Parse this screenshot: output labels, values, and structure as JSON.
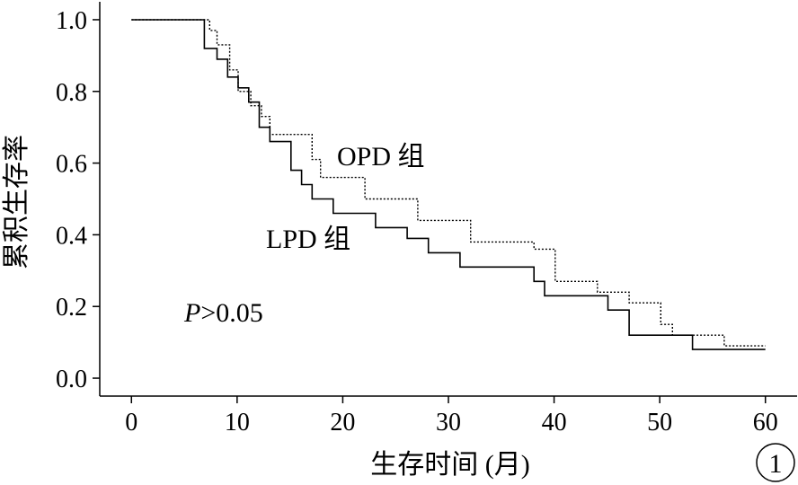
{
  "chart_data": {
    "type": "line",
    "step": true,
    "xlabel": "生存时间 (月)",
    "ylabel": "累积生存率",
    "xlim": [
      -3,
      63
    ],
    "ylim": [
      -0.05,
      1.05
    ],
    "xticks": [
      0,
      10,
      20,
      30,
      40,
      50,
      60
    ],
    "yticks": [
      0.0,
      0.2,
      0.4,
      0.6,
      0.8,
      1.0
    ],
    "xtick_labels": [
      "0",
      "10",
      "20",
      "30",
      "40",
      "50",
      "60"
    ],
    "ytick_labels": [
      "0.0",
      "0.2",
      "0.4",
      "0.6",
      "0.8",
      "1.0"
    ],
    "grid": false,
    "legend": "none",
    "annotations": {
      "p_symbol": "P",
      "p_value": ">0.05",
      "panel_number": "1"
    },
    "series": [
      {
        "name": "OPD 组",
        "line_style": "dotted",
        "color": "#000000",
        "points": [
          [
            0,
            1.0
          ],
          [
            7.4,
            1.0
          ],
          [
            7.4,
            0.97
          ],
          [
            8.1,
            0.97
          ],
          [
            8.1,
            0.93
          ],
          [
            9.3,
            0.93
          ],
          [
            9.3,
            0.86
          ],
          [
            10.1,
            0.86
          ],
          [
            10.1,
            0.8
          ],
          [
            11.3,
            0.8
          ],
          [
            11.3,
            0.76
          ],
          [
            12.3,
            0.76
          ],
          [
            12.3,
            0.73
          ],
          [
            13.1,
            0.73
          ],
          [
            13.1,
            0.68
          ],
          [
            17.1,
            0.68
          ],
          [
            17.1,
            0.61
          ],
          [
            17.9,
            0.61
          ],
          [
            17.9,
            0.56
          ],
          [
            22.1,
            0.56
          ],
          [
            22.1,
            0.5
          ],
          [
            27.1,
            0.5
          ],
          [
            27.1,
            0.44
          ],
          [
            32.1,
            0.44
          ],
          [
            32.1,
            0.38
          ],
          [
            38.1,
            0.38
          ],
          [
            38.1,
            0.36
          ],
          [
            40.1,
            0.36
          ],
          [
            40.1,
            0.27
          ],
          [
            44.1,
            0.27
          ],
          [
            44.1,
            0.24
          ],
          [
            47.1,
            0.24
          ],
          [
            47.1,
            0.21
          ],
          [
            50.1,
            0.21
          ],
          [
            50.1,
            0.15
          ],
          [
            51.2,
            0.15
          ],
          [
            51.2,
            0.12
          ],
          [
            56.1,
            0.12
          ],
          [
            56.1,
            0.09
          ],
          [
            60.0,
            0.09
          ]
        ]
      },
      {
        "name": "LPD 组",
        "line_style": "solid",
        "color": "#000000",
        "points": [
          [
            0,
            1.0
          ],
          [
            6.9,
            1.0
          ],
          [
            6.9,
            0.92
          ],
          [
            8.1,
            0.92
          ],
          [
            8.1,
            0.89
          ],
          [
            9.1,
            0.89
          ],
          [
            9.1,
            0.84
          ],
          [
            10.1,
            0.84
          ],
          [
            10.1,
            0.81
          ],
          [
            11.1,
            0.81
          ],
          [
            11.1,
            0.77
          ],
          [
            12.1,
            0.77
          ],
          [
            12.1,
            0.7
          ],
          [
            13.1,
            0.7
          ],
          [
            13.1,
            0.66
          ],
          [
            15.1,
            0.66
          ],
          [
            15.1,
            0.58
          ],
          [
            16.1,
            0.58
          ],
          [
            16.1,
            0.54
          ],
          [
            17.1,
            0.54
          ],
          [
            17.1,
            0.5
          ],
          [
            19.1,
            0.5
          ],
          [
            19.1,
            0.46
          ],
          [
            23.1,
            0.46
          ],
          [
            23.1,
            0.42
          ],
          [
            26.1,
            0.42
          ],
          [
            26.1,
            0.39
          ],
          [
            28.1,
            0.39
          ],
          [
            28.1,
            0.35
          ],
          [
            31.1,
            0.35
          ],
          [
            31.1,
            0.31
          ],
          [
            38.1,
            0.31
          ],
          [
            38.1,
            0.27
          ],
          [
            39.1,
            0.27
          ],
          [
            39.1,
            0.23
          ],
          [
            45.1,
            0.23
          ],
          [
            45.1,
            0.19
          ],
          [
            47.1,
            0.19
          ],
          [
            47.1,
            0.12
          ],
          [
            53.1,
            0.12
          ],
          [
            53.1,
            0.08
          ],
          [
            60.0,
            0.08
          ]
        ]
      }
    ]
  }
}
